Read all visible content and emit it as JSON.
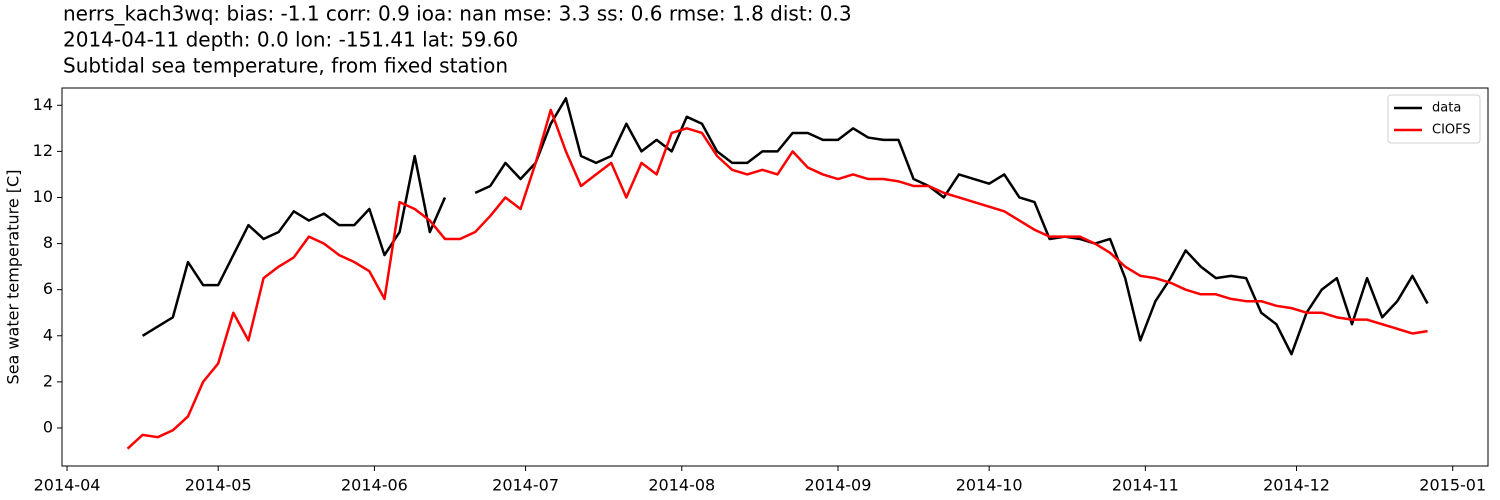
{
  "chart_data": {
    "type": "line",
    "title_lines": [
      "nerrs_kach3wq: bias: -1.1  corr: 0.9  ioa: nan  mse: 3.3  ss: 0.6  rmse: 1.8  dist: 0.3",
      "2014-04-11 depth: 0.0 lon: -151.41 lat: 59.60",
      "Subtidal sea temperature, from fixed station"
    ],
    "ylabel": "Sea water temperature [C]",
    "x": [
      12,
      15,
      18,
      21,
      24,
      27,
      30,
      33,
      36,
      39,
      42,
      45,
      48,
      51,
      54,
      57,
      60,
      63,
      66,
      69,
      72,
      75,
      78,
      81,
      84,
      87,
      90,
      93,
      96,
      99,
      102,
      105,
      108,
      111,
      114,
      117,
      120,
      123,
      126,
      129,
      132,
      135,
      138,
      141,
      144,
      147,
      150,
      153,
      156,
      159,
      162,
      165,
      168,
      171,
      174,
      177,
      180,
      183,
      186,
      189,
      192,
      195,
      198,
      201,
      204,
      207,
      210,
      213,
      216,
      219,
      222,
      225,
      228,
      231,
      234,
      237,
      240,
      243,
      246,
      249,
      252,
      255,
      258,
      261,
      264,
      267,
      270
    ],
    "series": [
      {
        "name": "data",
        "color": "#000000",
        "values": [
          null,
          4.0,
          4.4,
          4.8,
          7.2,
          6.2,
          6.2,
          7.5,
          8.8,
          8.2,
          8.5,
          9.4,
          9.0,
          9.3,
          8.8,
          8.8,
          9.5,
          7.5,
          8.5,
          11.8,
          8.5,
          10.0,
          null,
          10.2,
          10.5,
          11.5,
          10.8,
          11.5,
          13.2,
          14.3,
          11.8,
          11.5,
          11.8,
          13.2,
          12.0,
          12.5,
          12.0,
          13.5,
          13.2,
          12.0,
          11.5,
          11.5,
          12.0,
          12.0,
          12.8,
          12.8,
          12.5,
          12.5,
          13.0,
          12.6,
          12.5,
          12.5,
          10.8,
          10.5,
          10.0,
          11.0,
          10.8,
          10.6,
          11.0,
          10.0,
          9.8,
          8.2,
          8.3,
          8.2,
          8.0,
          8.2,
          6.5,
          3.8,
          5.5,
          6.5,
          7.7,
          7.0,
          6.5,
          6.6,
          6.5,
          5.0,
          4.5,
          3.2,
          5.0,
          6.0,
          6.5,
          4.5,
          6.5,
          4.8,
          5.5,
          6.6,
          5.4
        ]
      },
      {
        "name": "CIOFS",
        "color": "#ff0000",
        "values": [
          -0.9,
          -0.3,
          -0.4,
          -0.1,
          0.5,
          2.0,
          2.8,
          5.0,
          3.8,
          6.5,
          7.0,
          7.4,
          8.3,
          8.0,
          7.5,
          7.2,
          6.8,
          5.6,
          9.8,
          9.5,
          9.0,
          8.2,
          8.2,
          8.5,
          9.2,
          10.0,
          9.5,
          11.5,
          13.8,
          12.0,
          10.5,
          11.0,
          11.5,
          10.0,
          11.5,
          11.0,
          12.8,
          13.0,
          12.8,
          11.8,
          11.2,
          11.0,
          11.2,
          11.0,
          12.0,
          11.3,
          11.0,
          10.8,
          11.0,
          10.8,
          10.8,
          10.7,
          10.5,
          10.5,
          10.2,
          10.0,
          9.8,
          9.6,
          9.4,
          9.0,
          8.6,
          8.3,
          8.3,
          8.3,
          8.0,
          7.6,
          7.0,
          6.6,
          6.5,
          6.3,
          6.0,
          5.8,
          5.8,
          5.6,
          5.5,
          5.5,
          5.3,
          5.2,
          5.0,
          5.0,
          4.8,
          4.7,
          4.7,
          4.5,
          4.3,
          4.1,
          4.2
        ]
      }
    ],
    "xlim": [
      -1,
      282
    ],
    "xticks": [
      {
        "value": 0,
        "label": "2014-04"
      },
      {
        "value": 30,
        "label": "2014-05"
      },
      {
        "value": 61,
        "label": "2014-06"
      },
      {
        "value": 91,
        "label": "2014-07"
      },
      {
        "value": 122,
        "label": "2014-08"
      },
      {
        "value": 153,
        "label": "2014-09"
      },
      {
        "value": 183,
        "label": "2014-10"
      },
      {
        "value": 214,
        "label": "2014-11"
      },
      {
        "value": 244,
        "label": "2014-12"
      },
      {
        "value": 275,
        "label": "2015-01"
      }
    ],
    "ylim": [
      -1.65,
      14.75
    ],
    "yticks": [
      0,
      2,
      4,
      6,
      8,
      10,
      12,
      14
    ],
    "grid": false,
    "legend": "upper-right"
  }
}
